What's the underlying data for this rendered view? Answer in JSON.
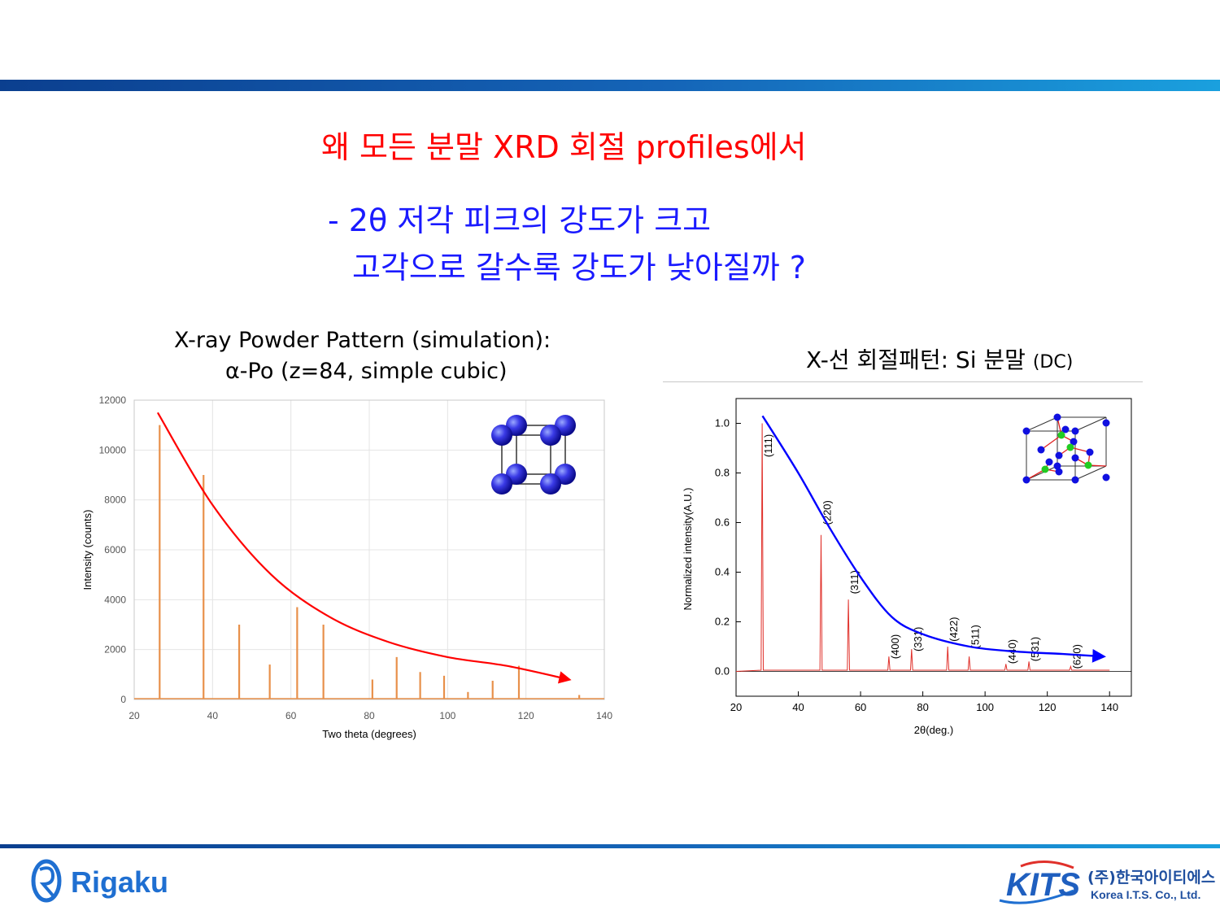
{
  "slide": {
    "title": "왜 모든 분말 XRD 회절 profiles에서",
    "question_line1": "-  2θ 저각 피크의 강도가 크고",
    "question_line2": "고각으로 갈수록 강도가 낮아질까 ?"
  },
  "colors": {
    "accent_bar": "#1565b8",
    "title": "#ff0000",
    "question": "#1a1aff",
    "sim_peaks": "#e8904a",
    "si_pattern": "#e0302a",
    "left_trend": "#ff0000",
    "right_trend": "#0000ff"
  },
  "logos": {
    "left": "Rigaku",
    "right_kor": "(주)한국아이티에스",
    "right_main": "KITS",
    "right_eng": "Korea I.T.S. Co., Ltd."
  },
  "chart_data": [
    {
      "type": "bar",
      "title_line1": "X-ray Powder Pattern (simulation):",
      "title_line2": "α-Po (z=84, simple cubic)",
      "xlabel": "Two theta (degrees)",
      "ylabel": "Intensity (counts)",
      "xlim": [
        20,
        140
      ],
      "ylim": [
        0,
        12000
      ],
      "xticks": [
        20,
        40,
        60,
        80,
        100,
        120,
        140
      ],
      "yticks": [
        0,
        2000,
        4000,
        6000,
        8000,
        10000,
        12000
      ],
      "grid": true,
      "peaks": {
        "x": [
          26.5,
          37.7,
          46.8,
          54.6,
          61.6,
          68.3,
          80.8,
          87.0,
          93.0,
          99.1,
          105.2,
          111.5,
          118.2,
          133.6
        ],
        "y": [
          11000,
          9000,
          3000,
          1400,
          3700,
          3000,
          800,
          1700,
          1100,
          950,
          300,
          750,
          1350,
          180
        ]
      },
      "trend": {
        "x": [
          26,
          40,
          55,
          70,
          85,
          100,
          115,
          131
        ],
        "y": [
          11500,
          7800,
          5000,
          3300,
          2300,
          1700,
          1350,
          800
        ]
      },
      "inset": "simple-cubic-unit-cell"
    },
    {
      "type": "line",
      "title": "X-선 회절패턴: Si 분말",
      "title_suffix": "(DC)",
      "xlabel": "2θ(deg.)",
      "ylabel": "Normalized intensity(A.U.)",
      "xlim": [
        20,
        147
      ],
      "ylim": [
        -0.1,
        1.1
      ],
      "xticks": [
        20,
        40,
        60,
        80,
        100,
        120,
        140
      ],
      "yticks": [
        "0.0",
        "0.2",
        "0.4",
        "0.6",
        "0.8",
        "1.0"
      ],
      "peaks": [
        {
          "hkl": "(111)",
          "x": 28.4,
          "y": 1.0,
          "label_y": 0.91
        },
        {
          "hkl": "(220)",
          "x": 47.3,
          "y": 0.55,
          "label_y": 0.64
        },
        {
          "hkl": "(311)",
          "x": 56.1,
          "y": 0.29,
          "label_y": 0.36
        },
        {
          "hkl": "(400)",
          "x": 69.1,
          "y": 0.06,
          "label_y": 0.1
        },
        {
          "hkl": "(331)",
          "x": 76.4,
          "y": 0.09,
          "label_y": 0.13
        },
        {
          "hkl": "(422)",
          "x": 88.0,
          "y": 0.1,
          "label_y": 0.17
        },
        {
          "hkl": "(511)",
          "x": 94.9,
          "y": 0.06,
          "label_y": 0.14
        },
        {
          "hkl": "(440)",
          "x": 106.7,
          "y": 0.03,
          "label_y": 0.08
        },
        {
          "hkl": "(531)",
          "x": 114.1,
          "y": 0.04,
          "label_y": 0.09
        },
        {
          "hkl": "(620)",
          "x": 127.5,
          "y": 0.02,
          "label_y": 0.06
        }
      ],
      "trend": {
        "x": [
          28.5,
          40,
          50,
          60,
          70,
          80,
          95,
          110,
          125,
          138
        ],
        "y": [
          1.03,
          0.8,
          0.58,
          0.38,
          0.22,
          0.15,
          0.1,
          0.08,
          0.07,
          0.06
        ]
      },
      "inset": "diamond-cubic-unit-cell"
    }
  ]
}
